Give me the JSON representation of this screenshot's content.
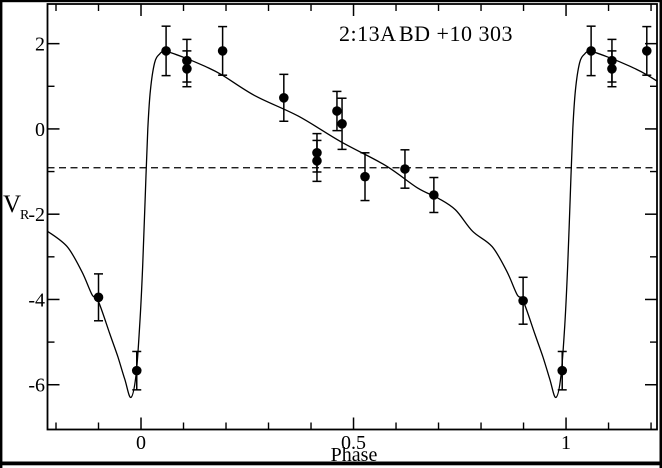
{
  "figure": {
    "title_left": "2:13A",
    "title_right": "BD +10 303"
  },
  "chart_data": {
    "type": "scatter",
    "title": "2:13A  BD +10 303",
    "xlabel": "Phase",
    "ylabel": "V_R",
    "ylabel_main": "V",
    "ylabel_sub": "R",
    "xlim": [
      -0.22,
      1.214
    ],
    "ylim": [
      -7.05,
      2.93
    ],
    "grid": false,
    "x_major_ticks": [
      {
        "value": 0,
        "label": "0"
      },
      {
        "value": 0.5,
        "label": "0.5"
      },
      {
        "value": 1,
        "label": "1"
      }
    ],
    "x_minor_ticks": [
      -0.2,
      -0.1,
      0.1,
      0.2,
      0.3,
      0.4,
      0.6,
      0.7,
      0.8,
      0.9,
      1.1,
      1.2
    ],
    "y_major_ticks": [
      {
        "value": 2,
        "label": "2"
      },
      {
        "value": 0,
        "label": "0"
      },
      {
        "value": -2,
        "label": "-2"
      },
      {
        "value": -4,
        "label": "-4"
      },
      {
        "value": -6,
        "label": "-6"
      }
    ],
    "y_minor_ticks": [
      1,
      -1,
      -3,
      -5
    ],
    "systemic_velocity_line": {
      "y": -0.91,
      "style": "dashed"
    },
    "observed_points": [
      {
        "phase": -0.1,
        "v": -3.95,
        "err": 0.55
      },
      {
        "phase": -0.01,
        "v": -5.67,
        "err": 0.45
      },
      {
        "phase": 0.059,
        "v": 1.83,
        "err": 0.58
      },
      {
        "phase": 0.108,
        "v": 1.6,
        "err": 0.5
      },
      {
        "phase": 0.108,
        "v": 1.41,
        "err": 0.42
      },
      {
        "phase": 0.192,
        "v": 1.83,
        "err": 0.57
      },
      {
        "phase": 0.336,
        "v": 0.73,
        "err": 0.55
      },
      {
        "phase": 0.414,
        "v": -0.56,
        "err": 0.45
      },
      {
        "phase": 0.414,
        "v": -0.75,
        "err": 0.48
      },
      {
        "phase": 0.461,
        "v": 0.42,
        "err": 0.46
      },
      {
        "phase": 0.473,
        "v": 0.12,
        "err": 0.6
      },
      {
        "phase": 0.527,
        "v": -1.12,
        "err": 0.56
      },
      {
        "phase": 0.621,
        "v": -0.94,
        "err": 0.45
      },
      {
        "phase": 0.689,
        "v": -1.55,
        "err": 0.41
      },
      {
        "phase": 0.899,
        "v": -4.03,
        "err": 0.55
      },
      {
        "phase": 0.991,
        "v": -5.67,
        "err": 0.45
      },
      {
        "phase": 1.059,
        "v": 1.83,
        "err": 0.58
      },
      {
        "phase": 1.108,
        "v": 1.6,
        "err": 0.5
      },
      {
        "phase": 1.108,
        "v": 1.41,
        "err": 0.42
      },
      {
        "phase": 1.19,
        "v": 1.83,
        "err": 0.57
      }
    ],
    "model_curve_control_points": [
      [
        -0.22,
        -2.4
      ],
      [
        -0.174,
        -2.76
      ],
      [
        -0.139,
        -3.35
      ],
      [
        -0.115,
        -3.89
      ],
      [
        -0.101,
        -4.03
      ],
      [
        -0.073,
        -4.82
      ],
      [
        -0.054,
        -5.36
      ],
      [
        -0.038,
        -5.88
      ],
      [
        -0.024,
        -6.3
      ],
      [
        -0.012,
        -5.8
      ],
      [
        -0.003,
        -4.6
      ],
      [
        0.004,
        -3.2
      ],
      [
        0.01,
        -1.55
      ],
      [
        0.016,
        0.0
      ],
      [
        0.022,
        0.9
      ],
      [
        0.032,
        1.55
      ],
      [
        0.044,
        1.76
      ],
      [
        0.058,
        1.82
      ],
      [
        0.1,
        1.68
      ],
      [
        0.15,
        1.47
      ],
      [
        0.19,
        1.27
      ],
      [
        0.268,
        0.78
      ],
      [
        0.37,
        0.3
      ],
      [
        0.47,
        -0.3
      ],
      [
        0.574,
        -0.85
      ],
      [
        0.65,
        -1.38
      ],
      [
        0.7,
        -1.63
      ],
      [
        0.74,
        -1.9
      ],
      [
        0.78,
        -2.4
      ],
      [
        0.826,
        -2.76
      ],
      [
        0.861,
        -3.35
      ],
      [
        0.885,
        -3.89
      ],
      [
        0.899,
        -4.03
      ],
      [
        0.927,
        -4.82
      ],
      [
        0.946,
        -5.36
      ],
      [
        0.962,
        -5.88
      ],
      [
        0.976,
        -6.3
      ],
      [
        0.988,
        -5.8
      ],
      [
        0.997,
        -4.6
      ],
      [
        1.004,
        -3.2
      ],
      [
        1.01,
        -1.55
      ],
      [
        1.016,
        0.0
      ],
      [
        1.022,
        0.9
      ],
      [
        1.032,
        1.55
      ],
      [
        1.044,
        1.76
      ],
      [
        1.058,
        1.82
      ],
      [
        1.1,
        1.68
      ],
      [
        1.15,
        1.47
      ],
      [
        1.19,
        1.27
      ],
      [
        1.268,
        0.78
      ]
    ]
  },
  "colors": {
    "ink": "#000000",
    "background": "#ffffff"
  }
}
